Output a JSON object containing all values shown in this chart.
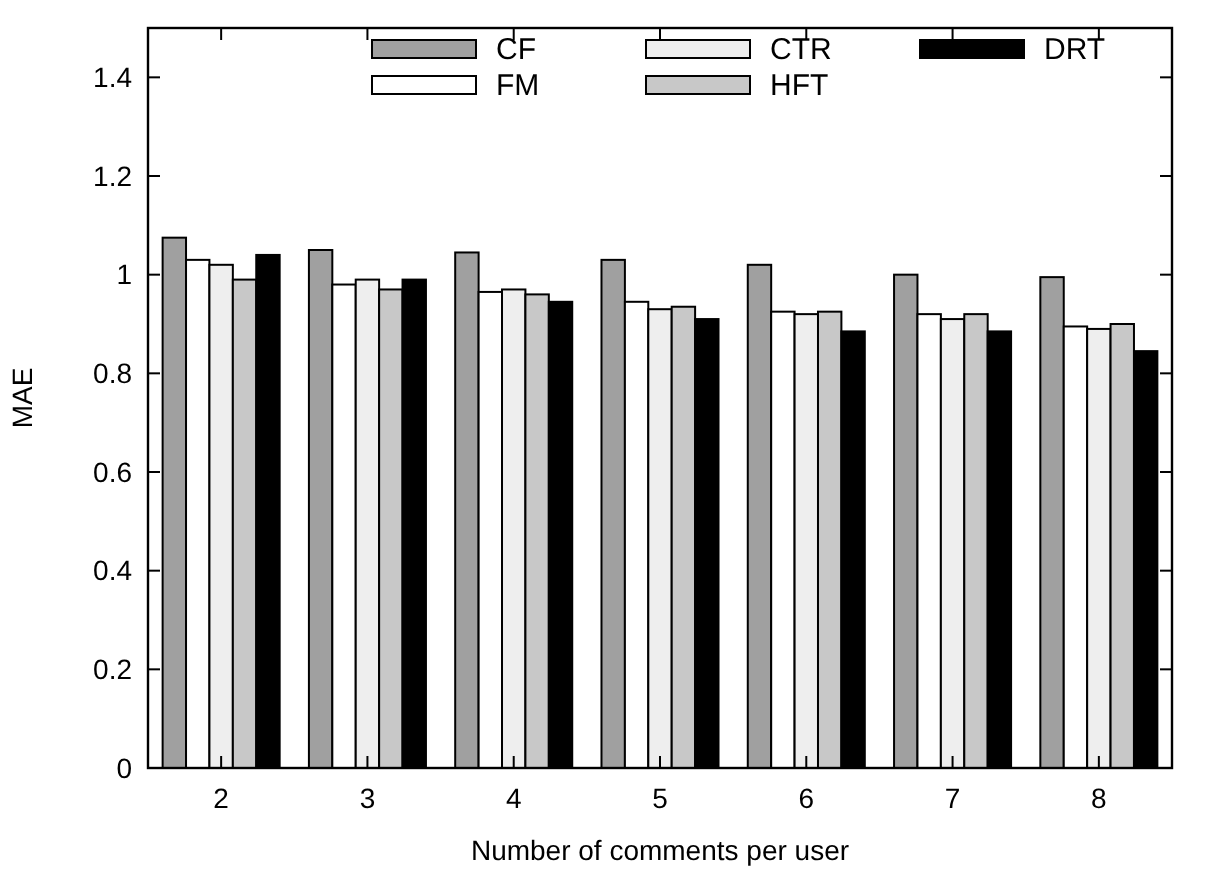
{
  "chart_data": {
    "type": "bar",
    "xlabel": "Number of comments per user",
    "ylabel": "MAE",
    "categories": [
      "2",
      "3",
      "4",
      "5",
      "6",
      "7",
      "8"
    ],
    "series": [
      {
        "name": "CF",
        "color": "#a0a0a0",
        "values": [
          1.075,
          1.05,
          1.045,
          1.03,
          1.02,
          1.0,
          0.995
        ]
      },
      {
        "name": "FM",
        "color": "#ffffff",
        "values": [
          1.03,
          0.98,
          0.965,
          0.945,
          0.925,
          0.92,
          0.895
        ]
      },
      {
        "name": "CTR",
        "color": "#eeeeee",
        "values": [
          1.02,
          0.99,
          0.97,
          0.93,
          0.92,
          0.91,
          0.89
        ]
      },
      {
        "name": "HFT",
        "color": "#c8c8c8",
        "values": [
          0.99,
          0.97,
          0.96,
          0.935,
          0.925,
          0.92,
          0.9
        ]
      },
      {
        "name": "DRT",
        "color": "#000000",
        "values": [
          1.04,
          0.99,
          0.945,
          0.91,
          0.885,
          0.885,
          0.845
        ]
      }
    ],
    "ylim": [
      0,
      1.5
    ],
    "yticks": [
      0,
      0.2,
      0.4,
      0.6,
      0.8,
      1,
      1.2,
      1.4
    ],
    "grid": false,
    "legend": "top"
  }
}
